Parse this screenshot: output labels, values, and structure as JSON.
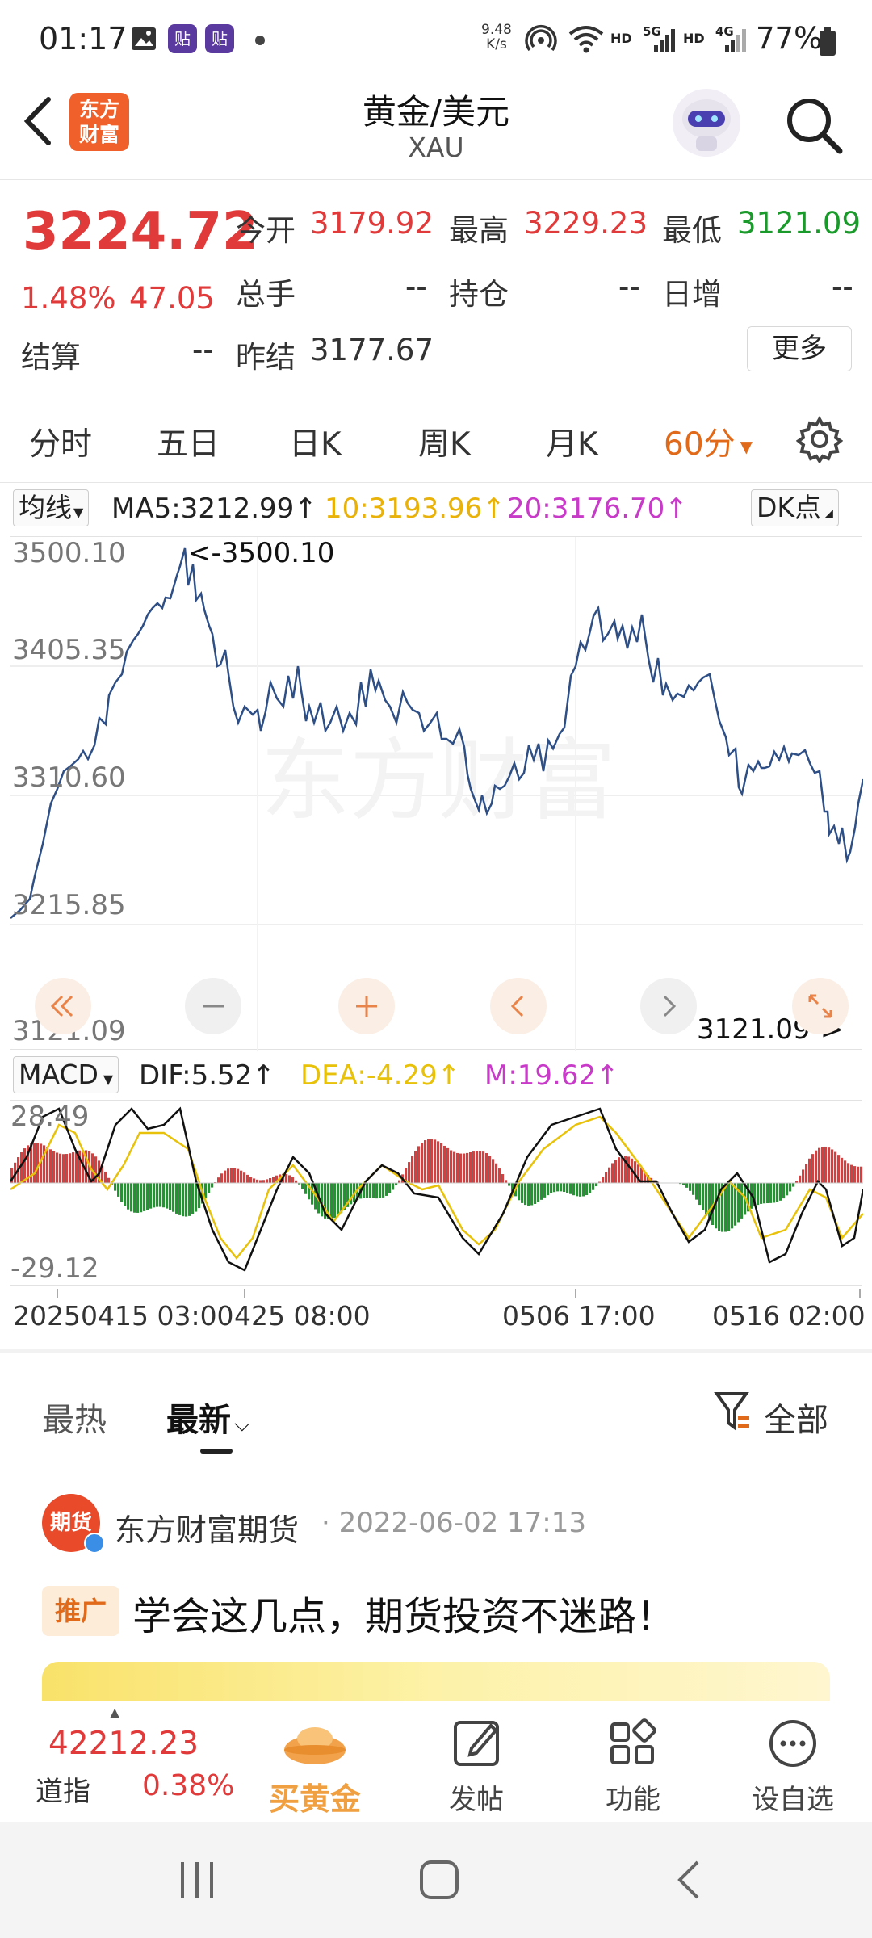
{
  "status_bar": {
    "time": "01:17",
    "app_badges": [
      "贴",
      "贴"
    ],
    "net_rate_value": "9.48",
    "net_rate_unit": "K/s",
    "network_labels": [
      "HD",
      "5G",
      "HD",
      "4G"
    ],
    "battery": "77%"
  },
  "header": {
    "back_icon": "chevron-left-icon",
    "logo_text_line1": "东方",
    "logo_text_line2": "财富",
    "title": "黄金/美元",
    "subtitle": "XAU",
    "search_icon": "search-icon"
  },
  "quote": {
    "price": "3224.72",
    "change_pct": "1.48%",
    "change": "47.05",
    "open_label": "今开",
    "open": "3179.92",
    "high_label": "最高",
    "high": "3229.23",
    "low_label": "最低",
    "low": "3121.09",
    "volume_label": "总手",
    "volume": "--",
    "position_label": "持仓",
    "position": "--",
    "daily_inc_label": "日增",
    "daily_inc": "--",
    "settle_label": "结算",
    "settle": "--",
    "prev_settle_label": "昨结",
    "prev_settle": "3177.67",
    "more_label": "更多"
  },
  "tabs": {
    "items": [
      "分时",
      "五日",
      "日K",
      "周K",
      "月K",
      "60分"
    ],
    "active": "60分",
    "settings_icon": "gear-icon"
  },
  "ma_row": {
    "selector": "均线",
    "ma5": "MA5:3212.99",
    "ma10": "10:3193.96",
    "ma20": "20:3176.70",
    "dk_selector": "DK点"
  },
  "colors": {
    "up": "#e03a3a",
    "down": "#1a9a2a",
    "accent": "#e06a1a",
    "price_line": "#2e4f86",
    "dea": "#e8c20a",
    "m": "#c83bc8"
  },
  "price_chart": {
    "y_labels": [
      "3500.10",
      "3405.35",
      "3310.60",
      "3215.85",
      "3121.09"
    ],
    "max_annotation": "<-3500.10",
    "min_annotation": "3121.09->",
    "watermark": "东方财富",
    "controls": [
      "fast-back-icon",
      "zoom-out-icon",
      "zoom-in-icon",
      "prev-icon",
      "next-icon",
      "fullscreen-icon"
    ]
  },
  "macd": {
    "selector": "MACD",
    "dif": "DIF:5.52",
    "dea": "DEA:-4.29",
    "m": "M:19.62",
    "y_top": "28.49",
    "y_bottom": "-29.12"
  },
  "x_axis": {
    "labels": [
      "20250415 03:00",
      "425 08:00",
      "0506 17:00",
      "0516 02:00"
    ]
  },
  "news": {
    "tabs": [
      "最热",
      "最新"
    ],
    "active_tab": "最新",
    "filter_label": "全部",
    "author": "东方财富期货",
    "author_avatar_text": "期货",
    "date": "· 2022-06-02 17:13",
    "promo_badge": "推广",
    "headline": "学会这几点，期货投资不迷路！"
  },
  "bottom_nav": {
    "index_value": "42212.23",
    "index_name": "道指",
    "index_change": "0.38%",
    "items": [
      "买黄金",
      "发帖",
      "功能",
      "设自选"
    ]
  }
}
